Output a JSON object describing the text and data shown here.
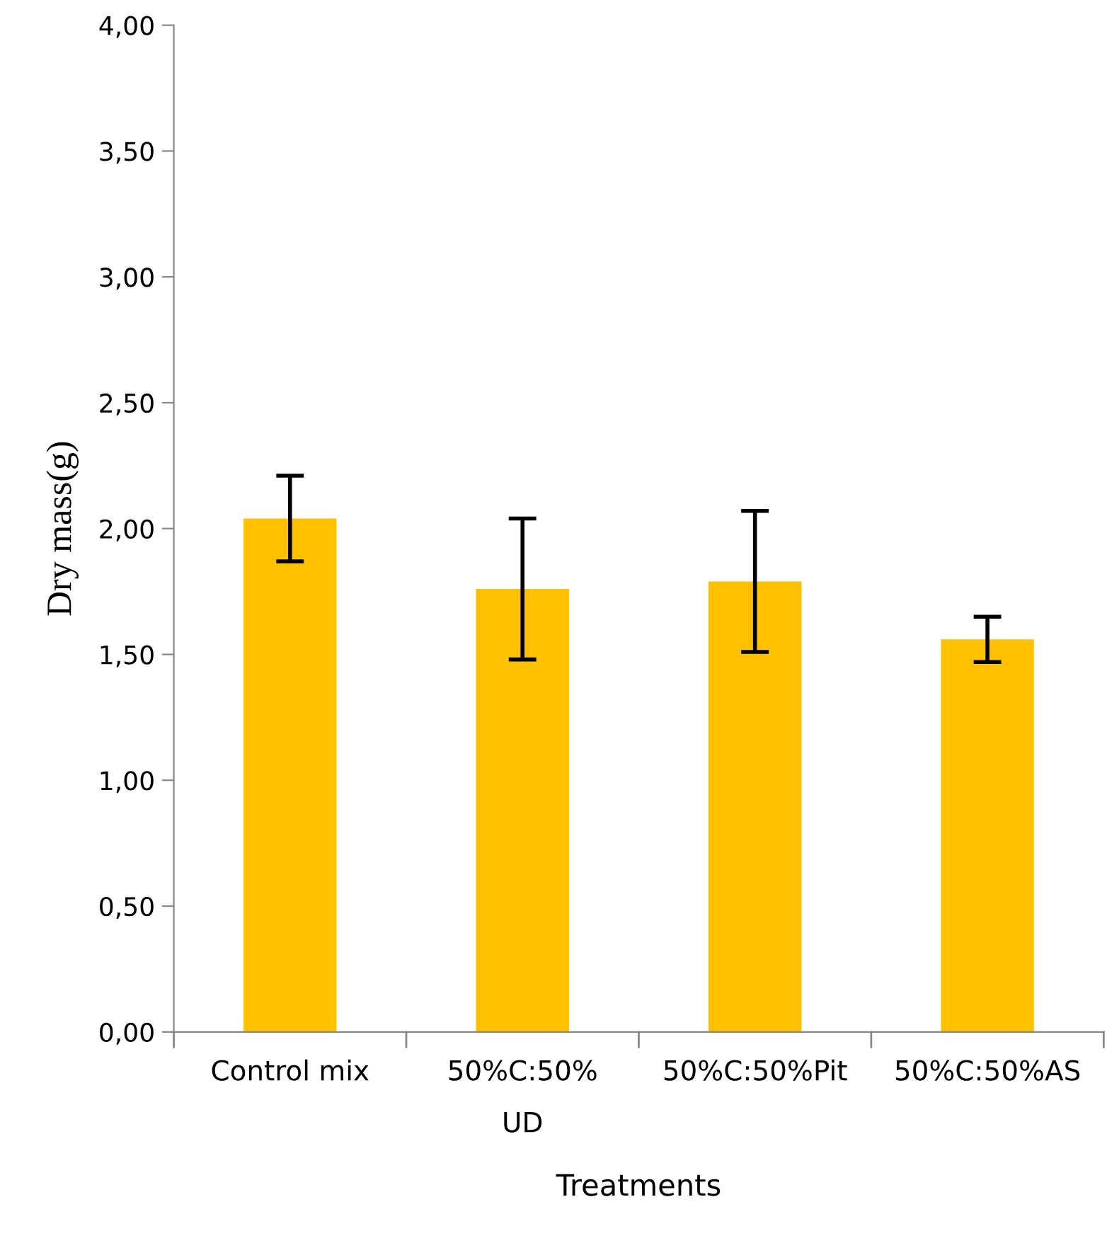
{
  "chart_data": {
    "type": "bar",
    "categories": [
      "Control mix",
      "50%C:50%\nUD",
      "50%C:50%Pit",
      "50%C:50%AS"
    ],
    "values": [
      2.04,
      1.76,
      1.79,
      1.56
    ],
    "errors": [
      0.17,
      0.28,
      0.28,
      0.09
    ],
    "color": "#ffc000",
    "xlabel": "Treatments",
    "ylabel": "Dry mass(g)",
    "ylim": [
      0,
      4
    ],
    "yticks": [
      {
        "value": 0,
        "label": "0,00"
      },
      {
        "value": 0.5,
        "label": "0,50"
      },
      {
        "value": 1,
        "label": "1,00"
      },
      {
        "value": 1.5,
        "label": "1,50"
      },
      {
        "value": 2,
        "label": "2,00"
      },
      {
        "value": 2.5,
        "label": "2,50"
      },
      {
        "value": 3,
        "label": "3,00"
      },
      {
        "value": 3.5,
        "label": "3,50"
      },
      {
        "value": 4,
        "label": "4,00"
      }
    ],
    "grid": false
  }
}
